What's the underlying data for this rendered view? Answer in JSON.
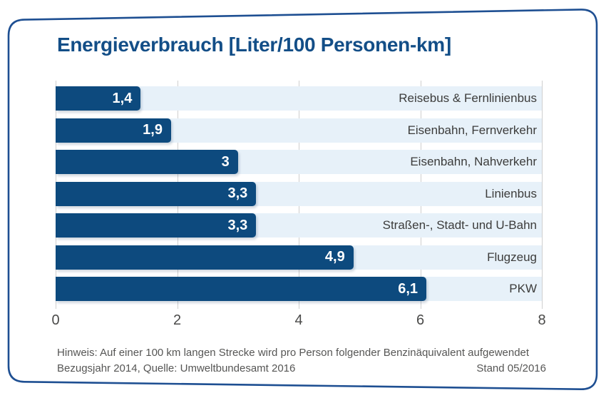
{
  "title": "Energieverbrauch [Liter/100 Personen-km]",
  "chart_data": {
    "type": "bar",
    "orientation": "horizontal",
    "title": "Energieverbrauch [Liter/100 Personen-km]",
    "categories": [
      "Reisebus & Fernlinienbus",
      "Eisenbahn, Fernverkehr",
      "Eisenbahn, Nahverkehr",
      "Linienbus",
      "Straßen-, Stadt- und U-Bahn",
      "Flugzeug",
      "PKW"
    ],
    "values": [
      1.4,
      1.9,
      3,
      3.3,
      3.3,
      4.9,
      6.1
    ],
    "value_labels": [
      "1,4",
      "1,9",
      "3",
      "3,3",
      "3,3",
      "4,9",
      "6,1"
    ],
    "xlim": [
      0,
      8
    ],
    "x_ticks": [
      0,
      2,
      4,
      6,
      8
    ],
    "x_tick_labels": [
      "0",
      "2",
      "4",
      "6",
      "8"
    ],
    "grid": true,
    "legend": "none",
    "bar_color": "#0d4a7e",
    "track_color": "#e7f1f9",
    "gridline_color": "#cfcfcf",
    "value_label_color": "#ffffff",
    "category_label_color": "#3c3c3b"
  },
  "colors": {
    "frame_border": "#1e4f92",
    "title_text": "#134e87",
    "axis_text": "#4a4a49",
    "footer_text": "#565655",
    "background": "#ffffff"
  },
  "footer": {
    "note": "Hinweis: Auf einer 100 km langen Strecke wird pro Person folgender Benzinäquivalent aufgewendet",
    "source": "Bezugsjahr 2014, Quelle: Umweltbundesamt 2016",
    "stand": "Stand 05/2016"
  }
}
